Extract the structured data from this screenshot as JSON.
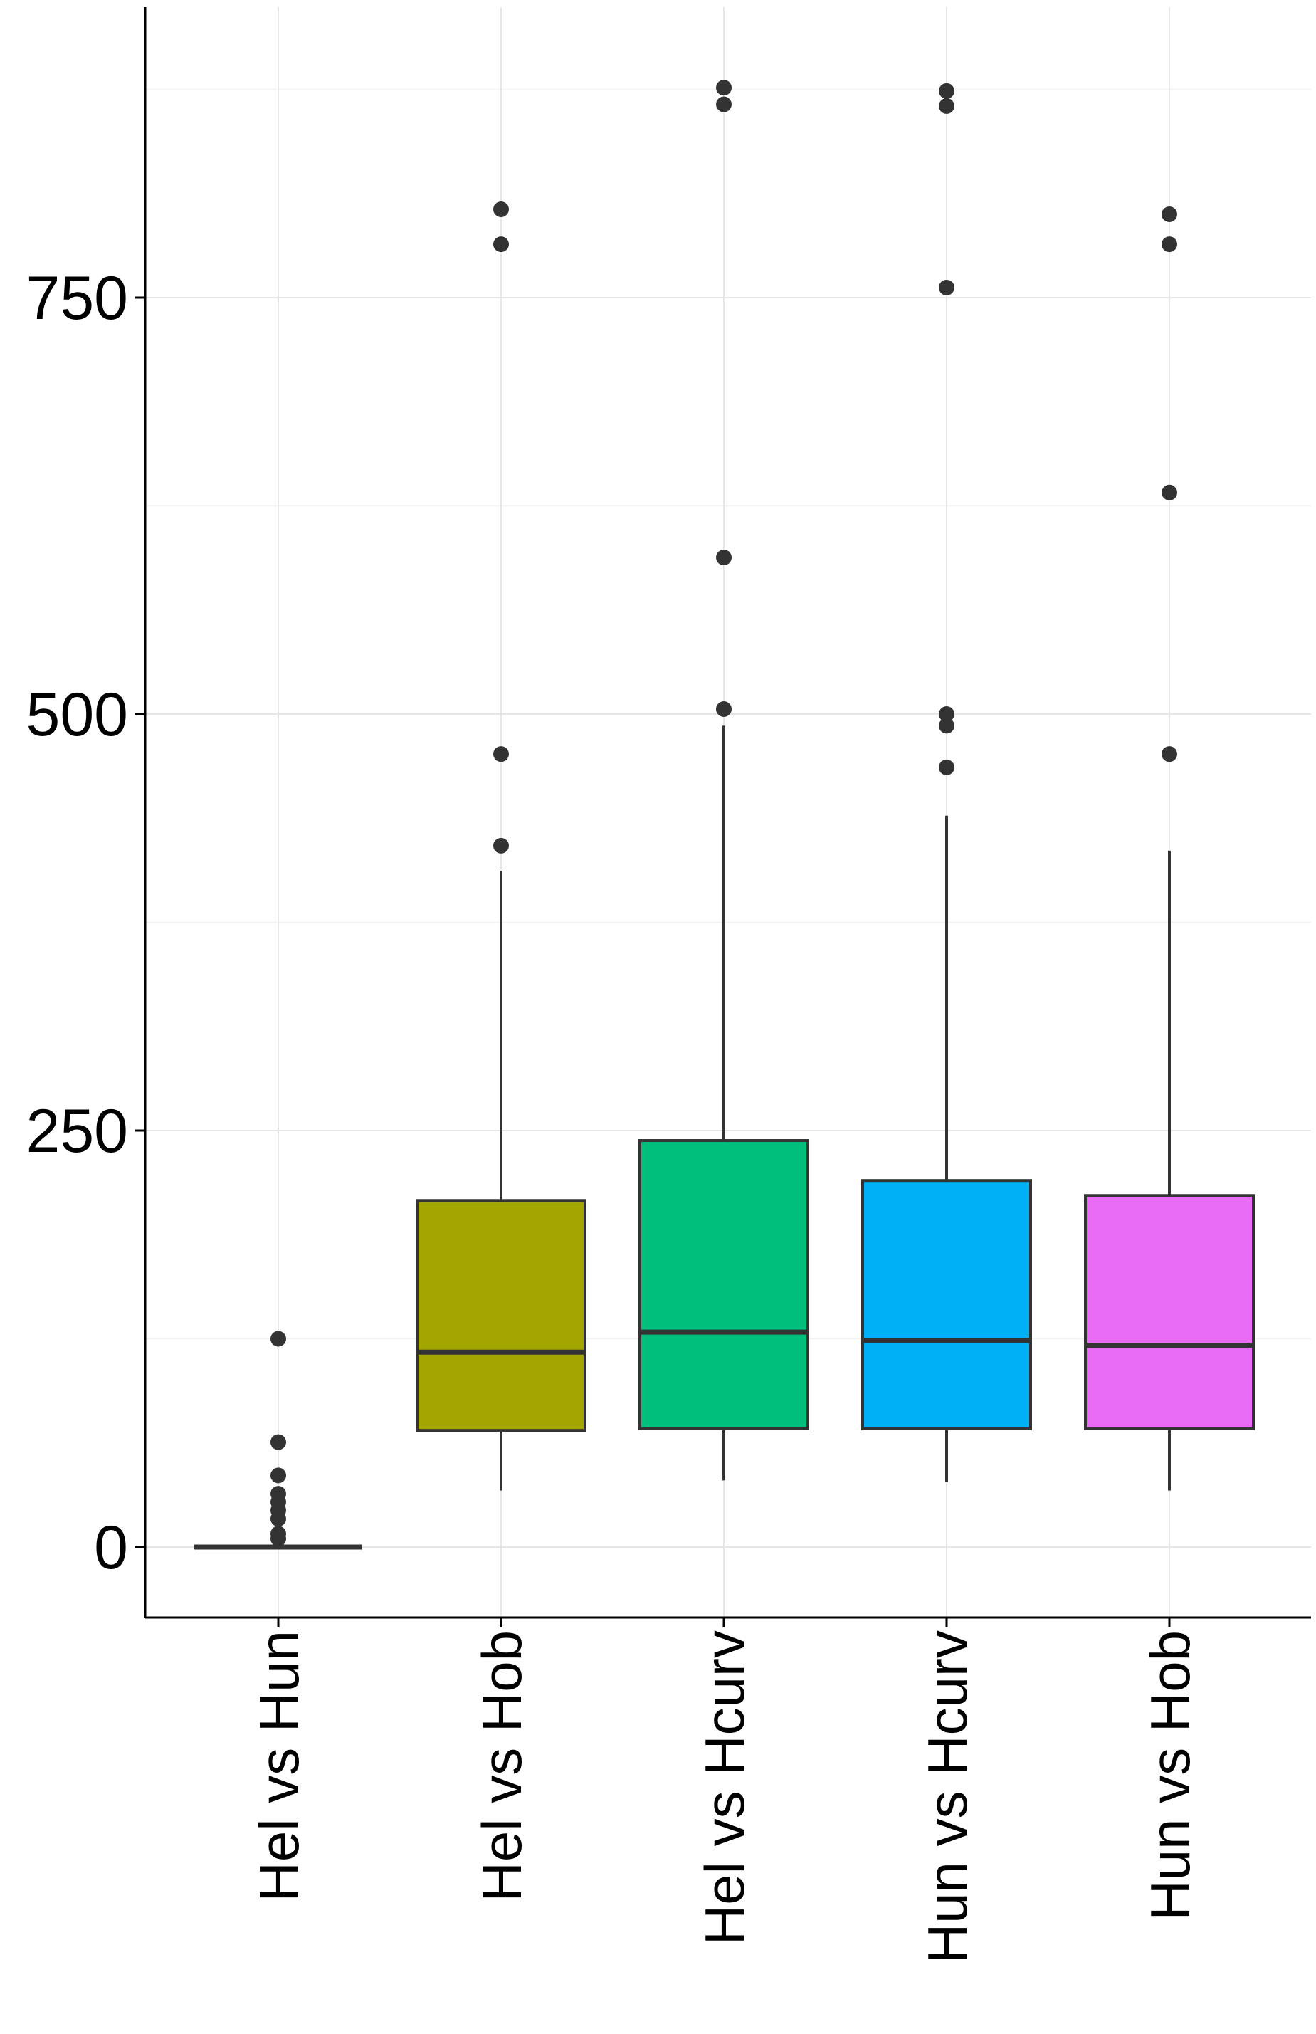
{
  "chart_data": {
    "type": "boxplot",
    "title": "",
    "xlabel": "",
    "ylabel": "",
    "ylim": [
      -42,
      925
    ],
    "y_ticks": [
      {
        "value": 0,
        "label": "0"
      },
      {
        "value": 250,
        "label": "250"
      },
      {
        "value": 500,
        "label": "500"
      },
      {
        "value": 750,
        "label": "750"
      }
    ],
    "y_minor_gridlines": [
      125,
      375,
      625,
      875
    ],
    "grid": true,
    "legend": "none",
    "categories": [
      "Hel vs Hun",
      "Hel vs Hob",
      "Hel vs Hcurv",
      "Hun vs Hcurv",
      "Hun vs Hob"
    ],
    "boxes": [
      {
        "category": "Hel vs Hun",
        "color": "#F8766D",
        "whisker_low": 0,
        "q1": 0,
        "median": 0,
        "q3": 0,
        "whisker_high": 0,
        "outliers": [
          5,
          8,
          17,
          22,
          27,
          32,
          43,
          63,
          125
        ]
      },
      {
        "category": "Hel vs Hob",
        "color": "#A3A500",
        "whisker_low": 34,
        "q1": 70,
        "median": 117,
        "q3": 208,
        "whisker_high": 406,
        "outliers": [
          421,
          476,
          782,
          803
        ]
      },
      {
        "category": "Hel vs Hcurv",
        "color": "#00BF7D",
        "whisker_low": 40,
        "q1": 71,
        "median": 129,
        "q3": 244,
        "whisker_high": 493,
        "outliers": [
          503,
          594,
          866,
          876
        ]
      },
      {
        "category": "Hun vs Hcurv",
        "color": "#00B0F6",
        "whisker_low": 39,
        "q1": 71,
        "median": 124,
        "q3": 220,
        "whisker_high": 439,
        "outliers": [
          468,
          493,
          500,
          756,
          865,
          874
        ]
      },
      {
        "category": "Hun vs Hob",
        "color": "#E76BF3",
        "whisker_low": 34,
        "q1": 71,
        "median": 121,
        "q3": 211,
        "whisker_high": 418,
        "outliers": [
          476,
          633,
          782,
          800
        ]
      }
    ]
  }
}
